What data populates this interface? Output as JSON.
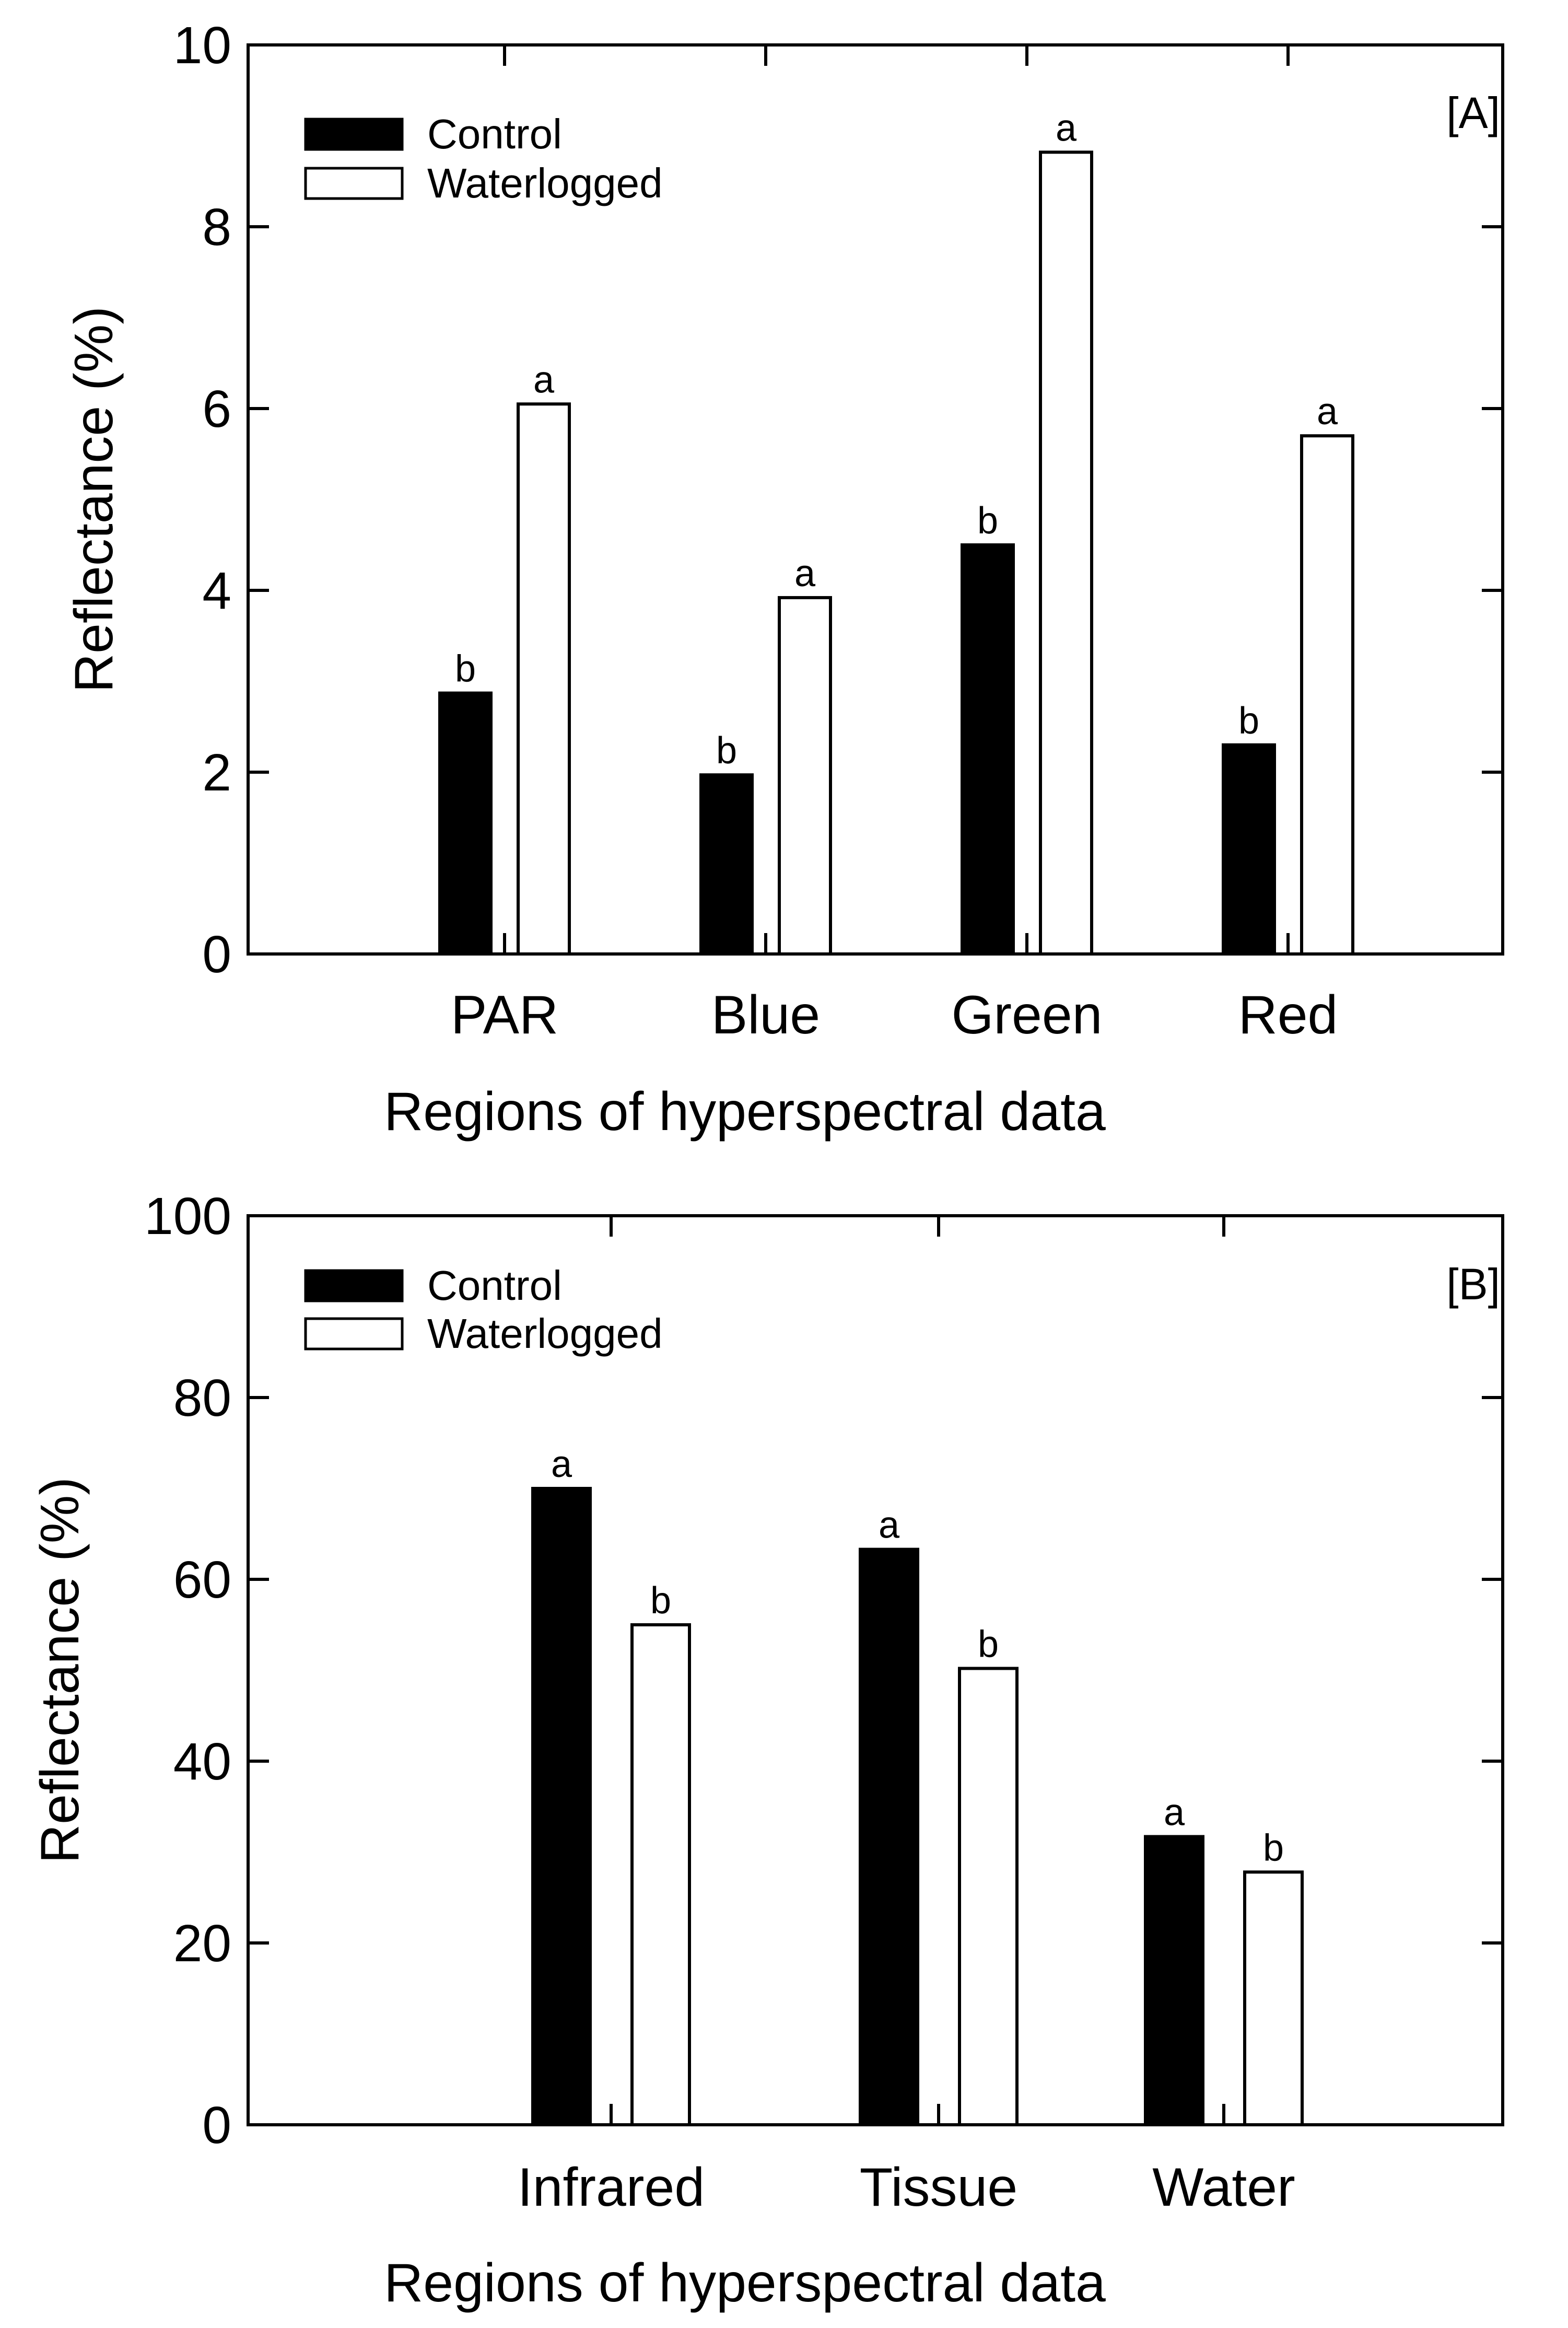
{
  "chart_data": [
    {
      "type": "bar",
      "panel_label": "[A]",
      "title": "",
      "xlabel": "Regions of hyperspectral data",
      "ylabel": "Reflectance (%)",
      "ylim": [
        0,
        10
      ],
      "yticks": [
        0,
        2,
        4,
        6,
        8,
        10
      ],
      "categories": [
        "PAR",
        "Blue",
        "Green",
        "Red"
      ],
      "series": [
        {
          "name": "Control",
          "color": "#000000",
          "values": [
            2.87,
            1.97,
            4.5,
            2.3
          ],
          "letters": [
            "b",
            "b",
            "b",
            "b"
          ]
        },
        {
          "name": "Waterlogged",
          "color": "#ffffff",
          "values": [
            6.05,
            3.92,
            8.82,
            5.7
          ],
          "letters": [
            "a",
            "a",
            "a",
            "a"
          ]
        }
      ],
      "legend_position": "top-left",
      "grid": false
    },
    {
      "type": "bar",
      "panel_label": "[B]",
      "title": "",
      "xlabel": "Regions of hyperspectral data",
      "ylabel": "Reflectance (%)",
      "ylim": [
        0,
        100
      ],
      "yticks": [
        0,
        20,
        40,
        60,
        80,
        100
      ],
      "categories": [
        "Infrared",
        "Tissue",
        "Water"
      ],
      "series": [
        {
          "name": "Control",
          "color": "#000000",
          "values": [
            70.0,
            63.3,
            31.7
          ],
          "letters": [
            "a",
            "a",
            "a"
          ]
        },
        {
          "name": "Waterlogged",
          "color": "#ffffff",
          "values": [
            55.0,
            50.2,
            27.8
          ],
          "letters": [
            "b",
            "b",
            "b"
          ]
        }
      ],
      "legend_position": "top-left",
      "grid": false
    }
  ]
}
